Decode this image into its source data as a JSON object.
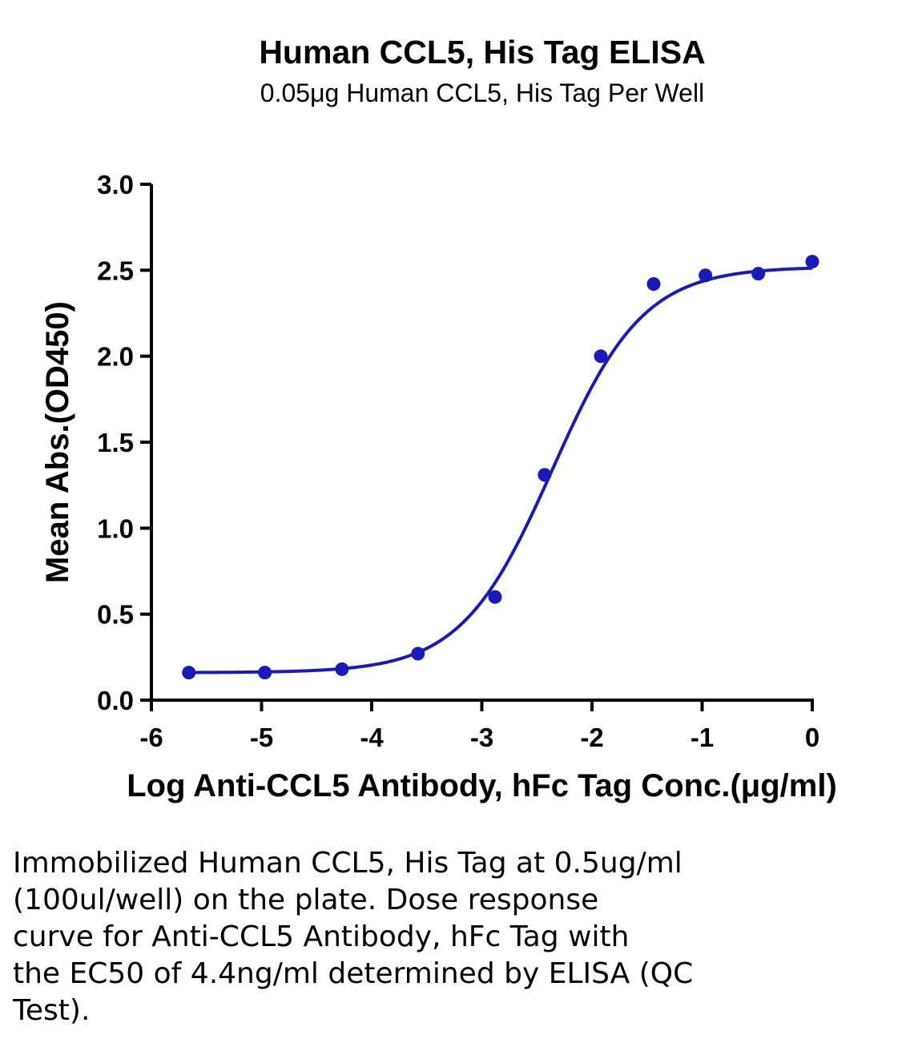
{
  "chart_data": {
    "type": "scatter",
    "title": "Human CCL5, His Tag ELISA",
    "subtitle": "0.05μg Human CCL5, His Tag Per Well",
    "xlabel": "Log Anti-CCL5 Antibody, hFc Tag Conc.(μg/ml)",
    "ylabel": "Mean Abs.(OD450)",
    "xlim": [
      -6,
      0
    ],
    "ylim": [
      0,
      3
    ],
    "x_ticks": [
      "-6",
      "-5",
      "-4",
      "-3",
      "-2",
      "-1",
      "0"
    ],
    "y_ticks": [
      "0.0",
      "0.5",
      "1.0",
      "1.5",
      "2.0",
      "2.5",
      "3.0"
    ],
    "series": [
      {
        "x": [
          -5.66,
          -4.97,
          -4.27,
          -3.58,
          -2.88,
          -2.43,
          -1.92,
          -1.44,
          -0.97,
          -0.49,
          0.0
        ],
        "y": [
          0.16,
          0.16,
          0.18,
          0.27,
          0.6,
          1.31,
          2.0,
          2.42,
          2.47,
          2.48,
          2.55
        ]
      }
    ],
    "fit_curve": {
      "bottom": 0.16,
      "top": 2.52,
      "log_ec50": -2.36,
      "hill_slope": 1.05
    },
    "color": "#1a1ab8",
    "grid": false
  },
  "caption_lines": [
    "Immobilized Human CCL5, His Tag at 0.5ug/ml",
    "(100ul/well) on the plate. Dose response",
    "curve for Anti-CCL5 Antibody, hFc Tag with",
    "the EC50 of 4.4ng/ml determined by ELISA (QC",
    "Test)."
  ]
}
